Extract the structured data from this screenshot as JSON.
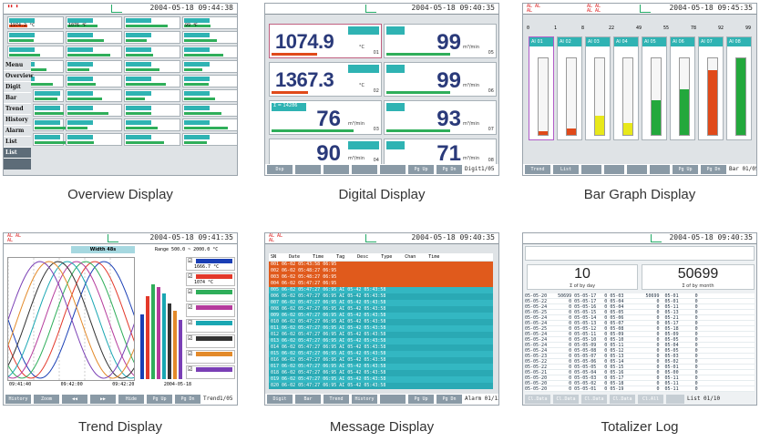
{
  "captions": {
    "overview": "Overview Display",
    "digital": "Digital Display",
    "bar": "Bar Graph Display",
    "trend": "Trend Display",
    "message": "Message Display",
    "totalizer": "Totalizer Log"
  },
  "overview": {
    "timestamp": "2004-05-18 09:44:38",
    "menu": [
      "Menu",
      "Overview",
      "Digit",
      "Bar",
      "Trend",
      "History",
      "Alarm",
      "List",
      "List"
    ],
    "readouts": [
      "1974.2 °C",
      "1076 ℉",
      "99 ℉",
      "93 MPa",
      "70.6 Kg/cm²"
    ]
  },
  "digital": {
    "timestamp": "2004-05-18 09:40:35",
    "left_values": [
      "1074.9",
      "1367.3",
      "76",
      "90"
    ],
    "right_values": [
      "99",
      "99",
      "93",
      "71"
    ],
    "total_label": "Σ = 14286",
    "unit": "m³/min",
    "channels_left": [
      "01",
      "02",
      "03",
      "04"
    ],
    "channels_right": [
      "05",
      "06",
      "07",
      "08"
    ],
    "softkeys": [
      "Dsp",
      "",
      "",
      "",
      "",
      "Pg Up",
      "Pg Dn"
    ],
    "page": "Digit1/05"
  },
  "bar": {
    "timestamp": "2004-05-18 09:45:35",
    "scale": [
      "0",
      "1",
      "8",
      "22",
      "49",
      "55",
      "78",
      "92",
      "99"
    ],
    "channels": [
      "AI 01",
      "AI 02",
      "AI 03",
      "AI 04",
      "AI 05",
      "AI 06",
      "AI 07",
      "AI 08"
    ],
    "colors": [
      "#e04a1a",
      "#e04a1a",
      "#e8e81a",
      "#e8e81a",
      "#23a83c",
      "#23a83c",
      "#e04a1a",
      "#23a83c"
    ],
    "softkeys": [
      "Trend",
      "List",
      "",
      "",
      "",
      "",
      "Pg Up",
      "Pg Dn"
    ],
    "page": "Bar 01/05"
  },
  "trend": {
    "timestamp": "2004-05-18 09:41:35",
    "width_label": "Width 48s",
    "range": "Range  500.0 ~ 2000.0 °C",
    "time_labels": [
      "09:41:40",
      "09:42:00",
      "09:42:20"
    ],
    "date": "2004-05-18",
    "value1": "1666.7 °C",
    "value2": "1074 °C",
    "softkeys": [
      "History",
      "Zoom",
      "◀◀",
      "▶▶",
      "Hide",
      "Pg Up",
      "Pg Dn"
    ],
    "page": "Trend1/05",
    "colors": [
      "#1a3fb5",
      "#e3382a",
      "#2fae5a",
      "#b53b9c",
      "#1aa7b3",
      "#333333",
      "#e38a2a",
      "#7a3fb5"
    ]
  },
  "message": {
    "timestamp": "2004-05-18 09:40:35",
    "headers": [
      "SN",
      "Date",
      "Time",
      "Tag",
      "Desc",
      "Type",
      "Chan",
      "Time"
    ],
    "rows": [
      "001  06-02  05:43:58 06:95",
      "002  06-02  05:48:27 06:95",
      "003  06-02  05:48:27 06:95",
      "004  06-02  05:47:27 06:95",
      "005  06-02  05:47:27 06:95      AI  05-42  05:43:58",
      "006  06-02  05:47:27 06:95      AI  05-42  05:43:58",
      "007  06-02  05:47:27 06:95      AI  05-42  05:43:58",
      "008  06-02  05:47:27 06:95      AI  05-42  05:43:58",
      "009  06-02  05:47:27 06:95      AI  05-42  05:43:58",
      "010  06-02  05:47:27 06:95      AI  05-42  05:43:58",
      "011  06-02  05:47:27 06:95      AI  05-42  05:43:58",
      "012  06-02  05:47:27 06:95      AI  05-42  05:43:58",
      "013  06-02  05:47:27 06:95      AI  05-42  05:43:58",
      "014  06-02  05:47:27 06:95      AI  05-42  05:43:58",
      "015  06-02  05:47:27 06:95      AI  05-42  05:43:58",
      "016  06-02  05:47:27 06:95      AI  05-42  05:43:58",
      "017  06-02  05:47:27 06:95      AI  05-42  05:43:58",
      "018  06-02  05:47:27 06:95      AI  05-42  05:43:58",
      "019  06-02  05:47:27 06:95      AI  05-42  05:43:58",
      "020  06-02  05:47:27 06:95      AI  05-42  05:43:58"
    ],
    "softkeys": [
      "Digit",
      "Bar",
      "Trend",
      "History",
      "",
      "Pg Up",
      "Pg Dn"
    ],
    "page": "Alarm 01/13"
  },
  "totalizer": {
    "timestamp": "2004-05-18 09:40:35",
    "value_left": "10",
    "value_right": "50699",
    "label_left": "Σ of by day",
    "label_right": "Σ of by month",
    "rows": [
      "05-05-20    50699 05-05-17   0 05-03        50699  05-01      0",
      "05-05-22        0 05-05-17   0 05-04            0  05-01      0",
      "05-05-24        0 05-05-16   0 05-04            0  05-11      0",
      "05-05-25        0 05-05-15   0 05-05            0  05-13      0",
      "05-05-24        0 05-05-14   0 05-06            0  05-21      0",
      "05-05-24        0 05-05-13   0 05-07            0  05-17      0",
      "05-05-25        0 05-05-12   0 05-08            0  05-18      0",
      "05-05-24        0 05-05-11   0 05-09            0  05-09      0",
      "05-05-24        0 05-05-10   0 05-10            0  05-05      0",
      "05-05-24        0 05-05-09   0 05-11            0  05-04      0",
      "05-05-24        0 05-05-08   0 05-12            0  05-05      0",
      "05-05-23        0 05-05-07   0 05-13            0  05-03      0",
      "05-05-22        0 05-05-06   0 05-14            0  05-02      0",
      "05-05-22        0 05-05-05   0 05-15            0  05-01      0",
      "05-05-21        0 05-05-04   0 05-16            0  05-00      0",
      "05-05-20        0 05-05-03   0 05-17            0  05-11      0",
      "05-05-20        0 05-05-02   0 05-18            0  05-11      0",
      "05-05-20        0 05-05-01   0 05-19            0  05-11      0"
    ],
    "softkeys": [
      "Cl.Data",
      "Cl.Data",
      "Cl.Data",
      "Cl.Data",
      "Cl.All",
      "",
      ""
    ],
    "page": "List 01/10"
  }
}
